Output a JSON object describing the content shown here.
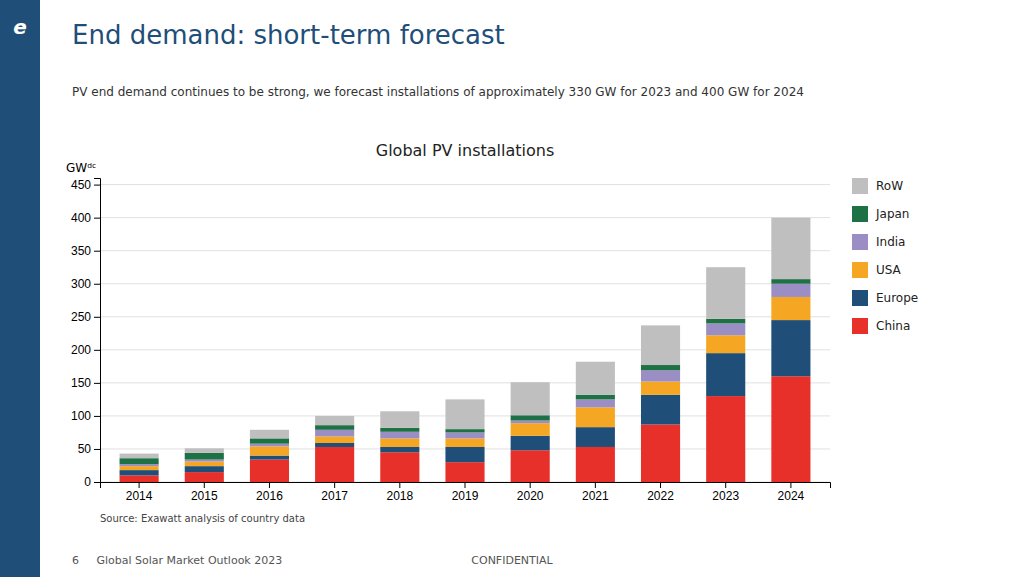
{
  "chart_data": {
    "type": "bar",
    "stacked": true,
    "title": "Global PV installations",
    "subtitle": "PV end demand continues to be strong, we forecast installations of approximately 330 GW for 2023 and 400 GW for 2024",
    "y_label": "GWᵈᶜ",
    "source": "Source: Exawatt analysis of country data",
    "annotations": [
      "End demand: short-term forecast",
      "6     Global Solar Market Outlook 2023",
      "CONFIDENTIAL",
      "e"
    ],
    "categories": [
      "2014",
      "2015",
      "2016",
      "2017",
      "2018",
      "2019",
      "2020",
      "2021",
      "2022",
      "2023",
      "2024"
    ],
    "series": [
      {
        "name": "China",
        "color": "#e8302a",
        "values": [
          10,
          15,
          34,
          53,
          45,
          30,
          48,
          53,
          87,
          130,
          160
        ]
      },
      {
        "name": "Europe",
        "color": "#1f4e79",
        "values": [
          8,
          9,
          6,
          6,
          8,
          23,
          22,
          30,
          45,
          65,
          85
        ]
      },
      {
        "name": "USA",
        "color": "#f5a623",
        "values": [
          6,
          7,
          14,
          10,
          13,
          13,
          19,
          30,
          20,
          27,
          35
        ]
      },
      {
        "name": "India",
        "color": "#9b8ec4",
        "values": [
          3,
          3,
          4,
          10,
          10,
          9,
          4,
          12,
          17,
          18,
          20
        ]
      },
      {
        "name": "Japan",
        "color": "#1e7145",
        "values": [
          9,
          10,
          8,
          7,
          6,
          5,
          8,
          7,
          8,
          7,
          7
        ]
      },
      {
        "name": "RoW",
        "color": "#bfbfbf",
        "values": [
          7,
          7,
          13,
          14,
          25,
          45,
          50,
          50,
          60,
          78,
          93
        ]
      }
    ],
    "ylim": [
      0,
      460
    ],
    "yticks": [
      0,
      50,
      100,
      150,
      200,
      250,
      300,
      350,
      400,
      450
    ],
    "grid": true,
    "legend": "right"
  }
}
